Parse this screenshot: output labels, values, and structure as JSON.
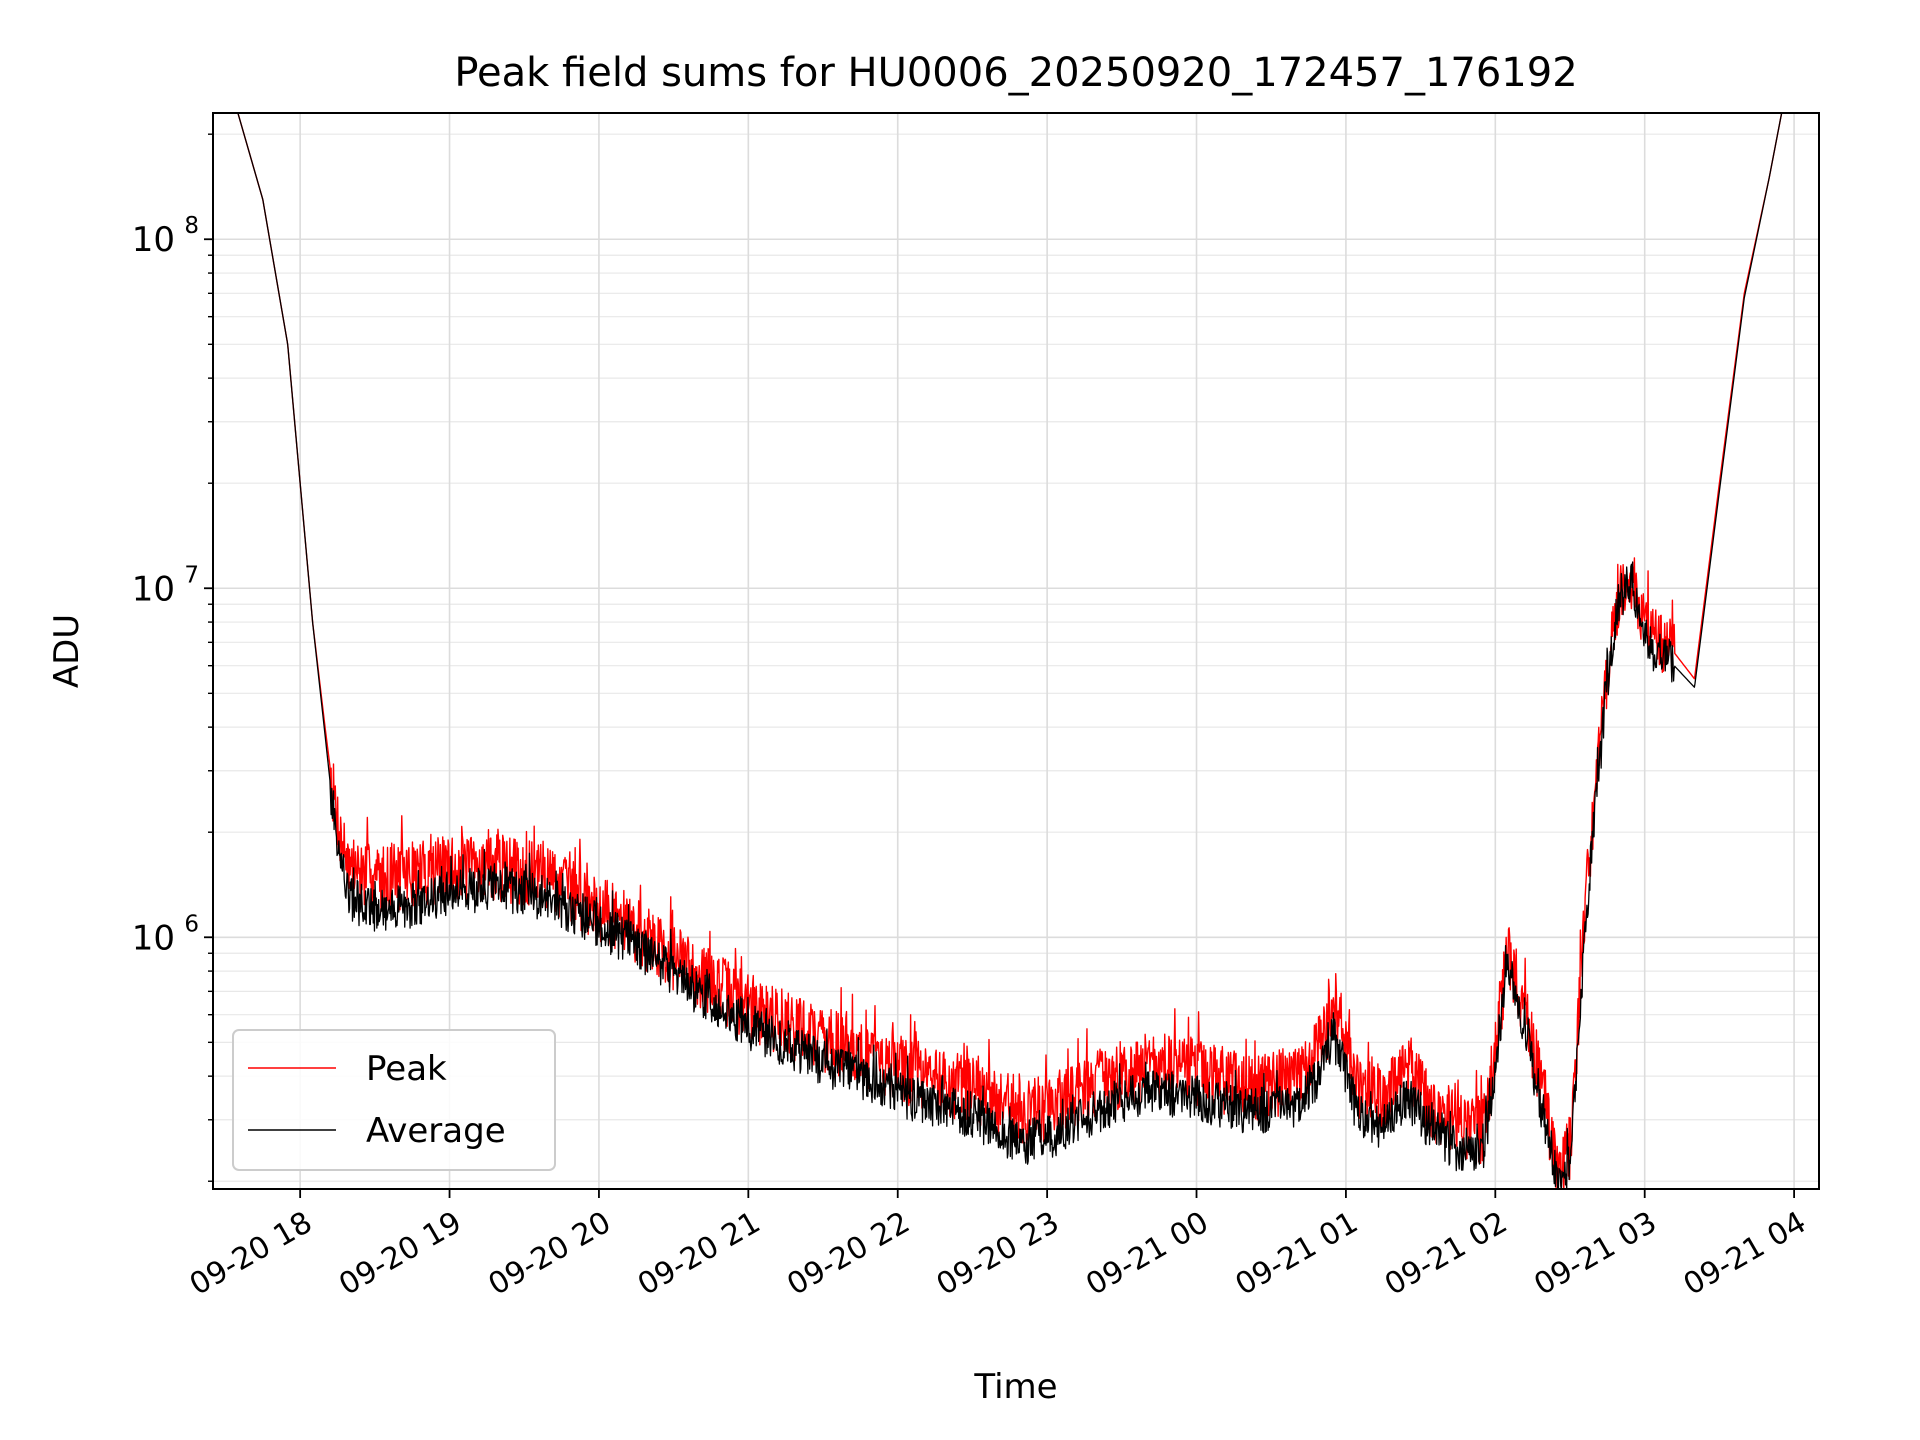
{
  "chart_data": {
    "type": "line",
    "title": "Peak field sums for HU0006_20250920_172457_176192",
    "xlabel": "Time",
    "ylabel": "ADU",
    "yscale": "log",
    "ylim": [
      190000,
      230000000
    ],
    "xlim": [
      "2025-09-20T17:25:00",
      "2025-09-21T04:10:00"
    ],
    "grid": "both",
    "legend_position": "lower-left",
    "x_ticks": [
      {
        "t": "2025-09-20T18:00:00",
        "label": "09-20 18"
      },
      {
        "t": "2025-09-20T19:00:00",
        "label": "09-20 19"
      },
      {
        "t": "2025-09-20T20:00:00",
        "label": "09-20 20"
      },
      {
        "t": "2025-09-20T21:00:00",
        "label": "09-20 21"
      },
      {
        "t": "2025-09-20T22:00:00",
        "label": "09-20 22"
      },
      {
        "t": "2025-09-20T23:00:00",
        "label": "09-20 23"
      },
      {
        "t": "2025-09-21T00:00:00",
        "label": "09-21 00"
      },
      {
        "t": "2025-09-21T01:00:00",
        "label": "09-21 01"
      },
      {
        "t": "2025-09-21T02:00:00",
        "label": "09-21 02"
      },
      {
        "t": "2025-09-21T03:00:00",
        "label": "09-21 03"
      },
      {
        "t": "2025-09-21T04:00:00",
        "label": "09-21 04"
      }
    ],
    "y_ticks": [
      {
        "value": 1000000,
        "base": "10",
        "exp": "6"
      },
      {
        "value": 10000000,
        "base": "10",
        "exp": "7"
      },
      {
        "value": 100000000,
        "base": "10",
        "exp": "8"
      }
    ],
    "series": [
      {
        "name": "Peak",
        "color": "#ff0000",
        "x": [
          "2025-09-20T17:35:00",
          "2025-09-20T17:45:00",
          "2025-09-20T17:55:00",
          "2025-09-20T18:00:00",
          "2025-09-20T18:05:00",
          "2025-09-20T18:10:00",
          "2025-09-20T18:13:00",
          "2025-09-20T18:16:00",
          "2025-09-20T18:20:00",
          "2025-09-20T18:30:00",
          "2025-09-20T18:45:00",
          "2025-09-20T19:00:00",
          "2025-09-20T19:20:00",
          "2025-09-20T19:40:00",
          "2025-09-20T20:00:00",
          "2025-09-20T20:20:00",
          "2025-09-20T20:40:00",
          "2025-09-20T21:00:00",
          "2025-09-20T21:30:00",
          "2025-09-20T22:00:00",
          "2025-09-20T22:30:00",
          "2025-09-20T22:50:00",
          "2025-09-20T23:00:00",
          "2025-09-20T23:20:00",
          "2025-09-20T23:40:00",
          "2025-09-21T00:00:00",
          "2025-09-21T00:20:00",
          "2025-09-21T00:40:00",
          "2025-09-21T00:50:00",
          "2025-09-21T00:55:00",
          "2025-09-21T01:05:00",
          "2025-09-21T01:15:00",
          "2025-09-21T01:25:00",
          "2025-09-21T01:35:00",
          "2025-09-21T01:45:00",
          "2025-09-21T01:55:00",
          "2025-09-21T02:05:00",
          "2025-09-21T02:10:00",
          "2025-09-21T02:20:00",
          "2025-09-21T02:25:00",
          "2025-09-21T02:30:00",
          "2025-09-21T02:37:00",
          "2025-09-21T02:45:00",
          "2025-09-21T02:50:00",
          "2025-09-21T02:55:00",
          "2025-09-21T03:00:00",
          "2025-09-21T03:05:00",
          "2025-09-21T03:10:00",
          "2025-09-21T03:20:00",
          "2025-09-21T03:30:00",
          "2025-09-21T03:40:00",
          "2025-09-21T03:50:00",
          "2025-09-21T03:55:00"
        ],
        "y": [
          230000000,
          130000000,
          50000000,
          20000000,
          8000000,
          4000000,
          2700000,
          2000000,
          1600000,
          1500000,
          1550000,
          1600000,
          1620000,
          1500000,
          1250000,
          1000000,
          800000,
          650000,
          520000,
          430000,
          370000,
          320000,
          330000,
          390000,
          440000,
          420000,
          380000,
          400000,
          500000,
          650000,
          380000,
          350000,
          420000,
          330000,
          300000,
          280000,
          900000,
          700000,
          350000,
          210000,
          260000,
          1500000,
          6000000,
          10000000,
          11000000,
          8000000,
          7000000,
          6800000,
          5500000,
          20000000,
          70000000,
          150000000,
          230000000
        ],
        "noise": 0.22
      },
      {
        "name": "Average",
        "color": "#000000",
        "x": [
          "2025-09-20T17:35:00",
          "2025-09-20T17:45:00",
          "2025-09-20T17:55:00",
          "2025-09-20T18:00:00",
          "2025-09-20T18:05:00",
          "2025-09-20T18:10:00",
          "2025-09-20T18:13:00",
          "2025-09-20T18:16:00",
          "2025-09-20T18:20:00",
          "2025-09-20T18:30:00",
          "2025-09-20T18:45:00",
          "2025-09-20T19:00:00",
          "2025-09-20T19:20:00",
          "2025-09-20T19:40:00",
          "2025-09-20T20:00:00",
          "2025-09-20T20:20:00",
          "2025-09-20T20:40:00",
          "2025-09-20T21:00:00",
          "2025-09-20T21:30:00",
          "2025-09-20T22:00:00",
          "2025-09-20T22:30:00",
          "2025-09-20T22:50:00",
          "2025-09-20T23:00:00",
          "2025-09-20T23:20:00",
          "2025-09-20T23:40:00",
          "2025-09-21T00:00:00",
          "2025-09-21T00:20:00",
          "2025-09-21T00:40:00",
          "2025-09-21T00:50:00",
          "2025-09-21T00:55:00",
          "2025-09-21T01:05:00",
          "2025-09-21T01:15:00",
          "2025-09-21T01:25:00",
          "2025-09-21T01:35:00",
          "2025-09-21T01:45:00",
          "2025-09-21T01:55:00",
          "2025-09-21T02:05:00",
          "2025-09-21T02:10:00",
          "2025-09-21T02:20:00",
          "2025-09-21T02:25:00",
          "2025-09-21T02:30:00",
          "2025-09-21T02:37:00",
          "2025-09-21T02:45:00",
          "2025-09-21T02:50:00",
          "2025-09-21T02:55:00",
          "2025-09-21T03:00:00",
          "2025-09-21T03:05:00",
          "2025-09-21T03:10:00",
          "2025-09-21T03:20:00",
          "2025-09-21T03:30:00",
          "2025-09-21T03:40:00",
          "2025-09-21T03:50:00",
          "2025-09-21T03:55:00"
        ],
        "y": [
          230000000,
          130000000,
          50000000,
          20000000,
          8000000,
          3800000,
          2400000,
          1700000,
          1300000,
          1200000,
          1250000,
          1350000,
          1400000,
          1300000,
          1100000,
          900000,
          700000,
          560000,
          440000,
          360000,
          310000,
          260000,
          270000,
          320000,
          370000,
          350000,
          320000,
          330000,
          420000,
          530000,
          310000,
          290000,
          350000,
          280000,
          250000,
          230000,
          820000,
          620000,
          300000,
          200000,
          230000,
          1300000,
          5500000,
          9500000,
          10500000,
          7500000,
          6500000,
          6200000,
          5200000,
          19000000,
          68000000,
          150000000,
          230000000
        ],
        "noise": 0.15
      }
    ]
  }
}
